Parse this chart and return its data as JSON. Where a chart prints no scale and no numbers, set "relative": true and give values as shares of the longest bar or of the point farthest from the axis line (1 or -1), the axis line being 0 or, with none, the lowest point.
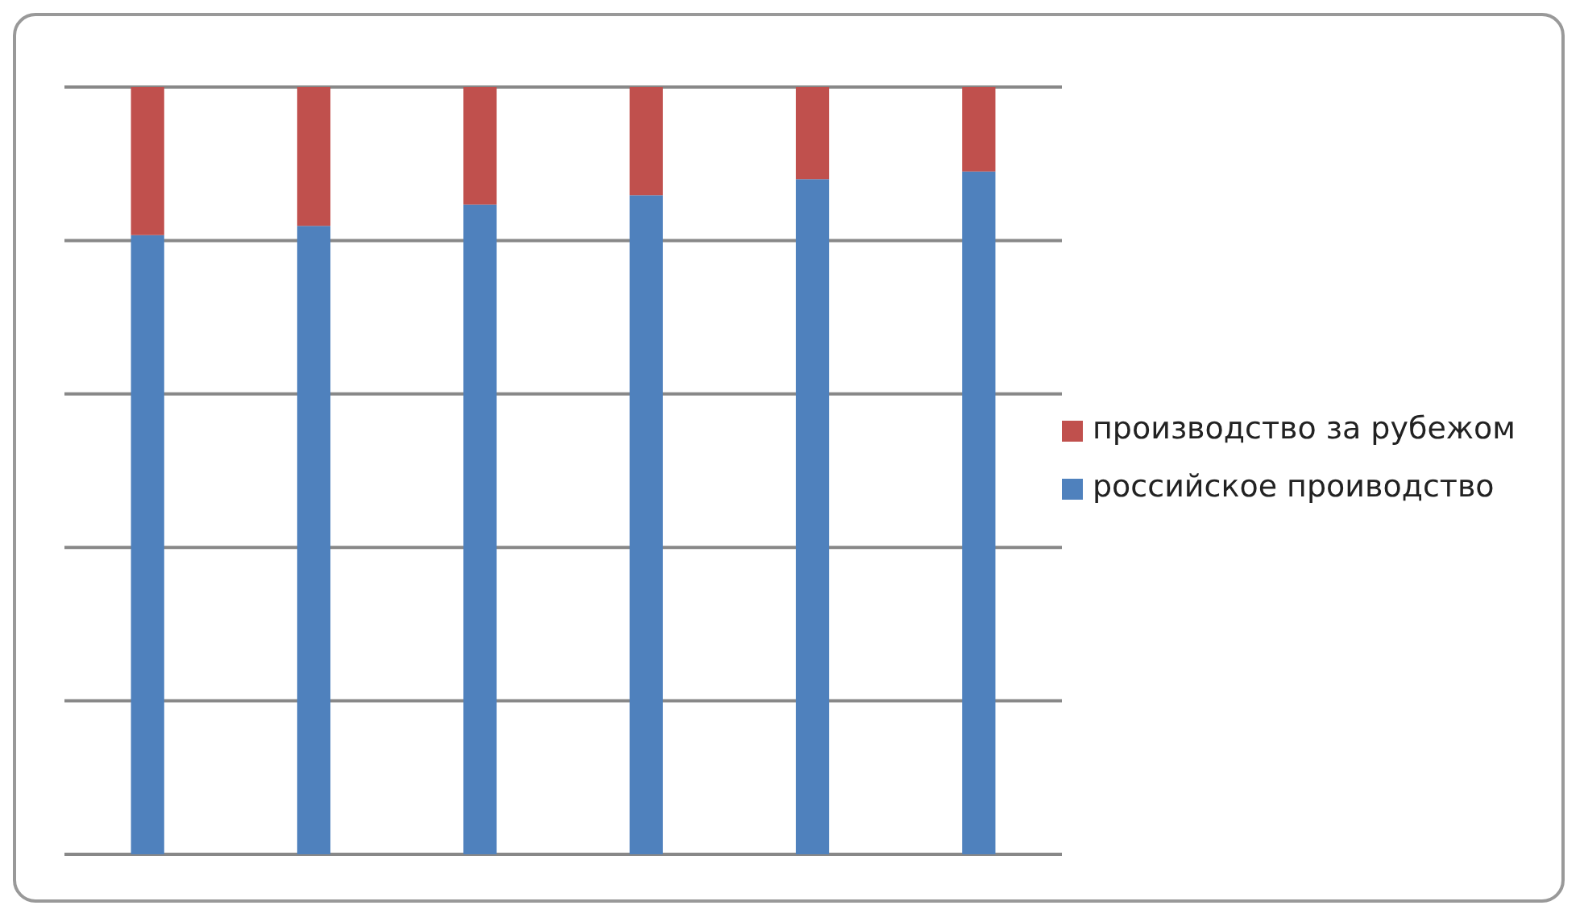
{
  "chart_data": {
    "type": "bar",
    "relative": true,
    "stacked": true,
    "grid": "y",
    "legend": "right",
    "categories": [
      null,
      null,
      null,
      null,
      null,
      null
    ],
    "series": [
      {
        "name": "российское проиводство",
        "color": "#4f81bd",
        "values": [
          0.807,
          0.819,
          0.847,
          0.859,
          0.88,
          0.89
        ]
      },
      {
        "name": "производство за рубежом",
        "color": "#c0504d",
        "values": [
          0.193,
          0.181,
          0.153,
          0.141,
          0.12,
          0.11
        ]
      }
    ]
  }
}
